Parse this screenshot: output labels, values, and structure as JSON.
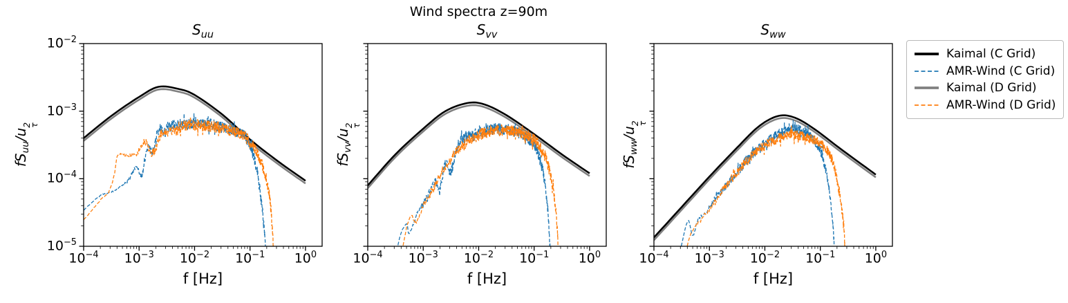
{
  "figure": {
    "title": "Wind spectra z=90m"
  },
  "axes": {
    "xlabel": "f [Hz]",
    "xtick_base": "10",
    "xtick_exponents": [
      "−4",
      "−3",
      "−2",
      "−1",
      "0"
    ],
    "ytick_base": "10",
    "ytick_exponents": [
      "−2",
      "−3",
      "−4",
      "−5"
    ]
  },
  "subplots": [
    {
      "title_main": "S",
      "title_sub": "uu",
      "ylabel_prefix": "fS",
      "ylabel_sub": "uu",
      "ylabel_mid": "/u",
      "ylabel_sup": "2",
      "ylabel_tau": "τ"
    },
    {
      "title_main": "S",
      "title_sub": "vv",
      "ylabel_prefix": "fS",
      "ylabel_sub": "vv",
      "ylabel_mid": "/u",
      "ylabel_sup": "2",
      "ylabel_tau": "τ"
    },
    {
      "title_main": "S",
      "title_sub": "ww",
      "ylabel_prefix": "fS",
      "ylabel_sub": "ww",
      "ylabel_mid": "/u",
      "ylabel_sup": "2",
      "ylabel_tau": "τ"
    }
  ],
  "legend": {
    "items": [
      {
        "label": "Kaimal (C Grid)",
        "color": "#000000",
        "style": "solid"
      },
      {
        "label": "AMR-Wind (C Grid)",
        "color": "#1f77b4",
        "style": "dashed"
      },
      {
        "label": "Kaimal (D Grid)",
        "color": "#808080",
        "style": "solid"
      },
      {
        "label": "AMR-Wind (D Grid)",
        "color": "#ff7f0e",
        "style": "dashed"
      }
    ]
  },
  "chart_data": {
    "type": "line",
    "x_scale": "log",
    "y_scale": "log",
    "xlim": [
      0.0001,
      2.0
    ],
    "ylim": [
      1e-05,
      0.01
    ],
    "xlabel": "f [Hz]",
    "points_format": "[log10(f in Hz), log10(f*S/u_tau^2)]",
    "subplots": [
      {
        "title": "S_uu",
        "ylabel": "fS_uu/u_tau^2",
        "series": [
          {
            "name": "Kaimal (C Grid)",
            "color": "#000000",
            "style": "solid",
            "noise": 0,
            "points_log10": [
              [
                -4,
                -3.4
              ],
              [
                -3.5,
                -3.07
              ],
              [
                -3,
                -2.79
              ],
              [
                -2.65,
                -2.64
              ],
              [
                -2.3,
                -2.67
              ],
              [
                -2,
                -2.76
              ],
              [
                -1.5,
                -3.05
              ],
              [
                -1,
                -3.42
              ],
              [
                -0.5,
                -3.74
              ],
              [
                0,
                -4.03
              ]
            ]
          },
          {
            "name": "Kaimal (D Grid)",
            "color": "#808080",
            "style": "solid",
            "noise": 0,
            "points_log10": [
              [
                -4,
                -3.44
              ],
              [
                -3.5,
                -3.11
              ],
              [
                -3,
                -2.83
              ],
              [
                -2.65,
                -2.68
              ],
              [
                -2.3,
                -2.71
              ],
              [
                -2,
                -2.8
              ],
              [
                -1.5,
                -3.09
              ],
              [
                -1,
                -3.46
              ],
              [
                -0.5,
                -3.78
              ],
              [
                0,
                -4.07
              ]
            ]
          },
          {
            "name": "AMR-Wind (C Grid)",
            "color": "#1f77b4",
            "style": "dashed",
            "noise": 0.085,
            "points_log10": [
              [
                -4,
                -4.46
              ],
              [
                -3.75,
                -4.28
              ],
              [
                -3.6,
                -4.22
              ],
              [
                -3.45,
                -4.18
              ],
              [
                -3.2,
                -4.03
              ],
              [
                -3.05,
                -3.82
              ],
              [
                -2.95,
                -3.95
              ],
              [
                -2.85,
                -3.55
              ],
              [
                -2.75,
                -3.6
              ],
              [
                -2.65,
                -3.28
              ],
              [
                -2.55,
                -3.32
              ],
              [
                -2.45,
                -3.22
              ],
              [
                -2.2,
                -3.2
              ],
              [
                -2,
                -3.17
              ],
              [
                -1.7,
                -3.2
              ],
              [
                -1.4,
                -3.26
              ],
              [
                -1.2,
                -3.33
              ],
              [
                -1.05,
                -3.42
              ],
              [
                -0.95,
                -3.62
              ],
              [
                -0.87,
                -3.9
              ],
              [
                -0.8,
                -4.3
              ],
              [
                -0.74,
                -4.8
              ],
              [
                -0.7,
                -5.3
              ]
            ]
          },
          {
            "name": "AMR-Wind (D Grid)",
            "color": "#ff7f0e",
            "style": "dashed",
            "noise": 0.085,
            "points_log10": [
              [
                -4,
                -4.61
              ],
              [
                -3.7,
                -4.32
              ],
              [
                -3.55,
                -4.2
              ],
              [
                -3.45,
                -3.95
              ],
              [
                -3.38,
                -3.65
              ],
              [
                -3.2,
                -3.66
              ],
              [
                -3.05,
                -3.63
              ],
              [
                -2.9,
                -3.45
              ],
              [
                -2.75,
                -3.62
              ],
              [
                -2.6,
                -3.32
              ],
              [
                -2.45,
                -3.3
              ],
              [
                -2.2,
                -3.22
              ],
              [
                -2,
                -3.2
              ],
              [
                -1.7,
                -3.22
              ],
              [
                -1.4,
                -3.27
              ],
              [
                -1.15,
                -3.35
              ],
              [
                -1,
                -3.45
              ],
              [
                -0.85,
                -3.65
              ],
              [
                -0.72,
                -3.95
              ],
              [
                -0.63,
                -4.4
              ],
              [
                -0.56,
                -5.3
              ]
            ]
          }
        ]
      },
      {
        "title": "S_vv",
        "ylabel": "fS_vv/u_tau^2",
        "series": [
          {
            "name": "Kaimal (C Grid)",
            "color": "#000000",
            "style": "solid",
            "noise": 0,
            "points_log10": [
              [
                -4,
                -4.1
              ],
              [
                -3.5,
                -3.64
              ],
              [
                -3,
                -3.26
              ],
              [
                -2.6,
                -3.0
              ],
              [
                -2.2,
                -2.88
              ],
              [
                -1.9,
                -2.9
              ],
              [
                -1.5,
                -3.06
              ],
              [
                -1,
                -3.34
              ],
              [
                -0.5,
                -3.64
              ],
              [
                0,
                -3.92
              ]
            ]
          },
          {
            "name": "Kaimal (D Grid)",
            "color": "#808080",
            "style": "solid",
            "noise": 0,
            "points_log10": [
              [
                -4,
                -4.14
              ],
              [
                -3.5,
                -3.68
              ],
              [
                -3,
                -3.3
              ],
              [
                -2.6,
                -3.04
              ],
              [
                -2.2,
                -2.92
              ],
              [
                -1.9,
                -2.94
              ],
              [
                -1.5,
                -3.1
              ],
              [
                -1,
                -3.38
              ],
              [
                -0.5,
                -3.68
              ],
              [
                0,
                -3.96
              ]
            ]
          },
          {
            "name": "AMR-Wind (C Grid)",
            "color": "#1f77b4",
            "style": "dashed",
            "noise": 0.085,
            "points_log10": [
              [
                -3.52,
                -5.3
              ],
              [
                -3.42,
                -4.85
              ],
              [
                -3.3,
                -4.68
              ],
              [
                -3.25,
                -4.8
              ],
              [
                -3.1,
                -4.5
              ],
              [
                -2.95,
                -4.3
              ],
              [
                -2.8,
                -4.05
              ],
              [
                -2.7,
                -4.12
              ],
              [
                -2.6,
                -3.78
              ],
              [
                -2.5,
                -3.9
              ],
              [
                -2.4,
                -3.55
              ],
              [
                -2.25,
                -3.4
              ],
              [
                -2.1,
                -3.35
              ],
              [
                -1.9,
                -3.3
              ],
              [
                -1.6,
                -3.26
              ],
              [
                -1.35,
                -3.3
              ],
              [
                -1.15,
                -3.37
              ],
              [
                -1,
                -3.5
              ],
              [
                -0.9,
                -3.7
              ],
              [
                -0.82,
                -4.0
              ],
              [
                -0.75,
                -4.5
              ],
              [
                -0.7,
                -5.3
              ]
            ]
          },
          {
            "name": "AMR-Wind (D Grid)",
            "color": "#ff7f0e",
            "style": "dashed",
            "noise": 0.085,
            "points_log10": [
              [
                -3.42,
                -5.3
              ],
              [
                -3.32,
                -4.8
              ],
              [
                -3.22,
                -4.55
              ],
              [
                -3.12,
                -4.65
              ],
              [
                -3,
                -4.4
              ],
              [
                -2.85,
                -4.2
              ],
              [
                -2.7,
                -3.95
              ],
              [
                -2.55,
                -3.75
              ],
              [
                -2.4,
                -3.6
              ],
              [
                -2.2,
                -3.45
              ],
              [
                -2,
                -3.35
              ],
              [
                -1.8,
                -3.3
              ],
              [
                -1.5,
                -3.28
              ],
              [
                -1.25,
                -3.32
              ],
              [
                -1.05,
                -3.4
              ],
              [
                -0.9,
                -3.52
              ],
              [
                -0.78,
                -3.72
              ],
              [
                -0.68,
                -4.05
              ],
              [
                -0.6,
                -4.55
              ],
              [
                -0.55,
                -5.3
              ]
            ]
          }
        ]
      },
      {
        "title": "S_ww",
        "ylabel": "fS_ww/u_tau^2",
        "series": [
          {
            "name": "Kaimal (C Grid)",
            "color": "#000000",
            "style": "solid",
            "noise": 0,
            "points_log10": [
              [
                -4,
                -4.87
              ],
              [
                -3.5,
                -4.42
              ],
              [
                -3,
                -3.97
              ],
              [
                -2.5,
                -3.54
              ],
              [
                -2.1,
                -3.22
              ],
              [
                -1.75,
                -3.07
              ],
              [
                -1.45,
                -3.1
              ],
              [
                -1.1,
                -3.27
              ],
              [
                -0.6,
                -3.58
              ],
              [
                0,
                -3.94
              ]
            ]
          },
          {
            "name": "Kaimal (D Grid)",
            "color": "#808080",
            "style": "solid",
            "noise": 0,
            "points_log10": [
              [
                -4,
                -4.91
              ],
              [
                -3.5,
                -4.46
              ],
              [
                -3,
                -4.01
              ],
              [
                -2.5,
                -3.58
              ],
              [
                -2.1,
                -3.26
              ],
              [
                -1.75,
                -3.11
              ],
              [
                -1.45,
                -3.14
              ],
              [
                -1.1,
                -3.31
              ],
              [
                -0.6,
                -3.62
              ],
              [
                0,
                -3.98
              ]
            ]
          },
          {
            "name": "AMR-Wind (C Grid)",
            "color": "#1f77b4",
            "style": "dashed",
            "noise": 0.07,
            "points_log10": [
              [
                -3.58,
                -5.3
              ],
              [
                -3.48,
                -4.9
              ],
              [
                -3.38,
                -4.62
              ],
              [
                -3.3,
                -4.85
              ],
              [
                -3.2,
                -4.6
              ],
              [
                -3.05,
                -4.5
              ],
              [
                -2.9,
                -4.3
              ],
              [
                -2.75,
                -4.15
              ],
              [
                -2.6,
                -4.0
              ],
              [
                -2.45,
                -3.85
              ],
              [
                -2.3,
                -3.7
              ],
              [
                -2.1,
                -3.55
              ],
              [
                -1.9,
                -3.42
              ],
              [
                -1.7,
                -3.32
              ],
              [
                -1.5,
                -3.26
              ],
              [
                -1.35,
                -3.28
              ],
              [
                -1.2,
                -3.35
              ],
              [
                -1.05,
                -3.5
              ],
              [
                -0.95,
                -3.7
              ],
              [
                -0.85,
                -4.1
              ],
              [
                -0.78,
                -4.6
              ],
              [
                -0.73,
                -5.3
              ]
            ]
          },
          {
            "name": "AMR-Wind (D Grid)",
            "color": "#ff7f0e",
            "style": "dashed",
            "noise": 0.07,
            "points_log10": [
              [
                -3.48,
                -5.3
              ],
              [
                -3.35,
                -4.85
              ],
              [
                -3.2,
                -4.65
              ],
              [
                -3.05,
                -4.5
              ],
              [
                -2.9,
                -4.35
              ],
              [
                -2.75,
                -4.15
              ],
              [
                -2.6,
                -4.0
              ],
              [
                -2.45,
                -3.85
              ],
              [
                -2.3,
                -3.72
              ],
              [
                -2.15,
                -3.6
              ],
              [
                -1.95,
                -3.48
              ],
              [
                -1.75,
                -3.4
              ],
              [
                -1.55,
                -3.35
              ],
              [
                -1.35,
                -3.37
              ],
              [
                -1.15,
                -3.42
              ],
              [
                -1,
                -3.48
              ],
              [
                -0.88,
                -3.58
              ],
              [
                -0.76,
                -3.8
              ],
              [
                -0.66,
                -4.2
              ],
              [
                -0.58,
                -4.7
              ],
              [
                -0.54,
                -5.3
              ]
            ]
          }
        ]
      }
    ]
  }
}
